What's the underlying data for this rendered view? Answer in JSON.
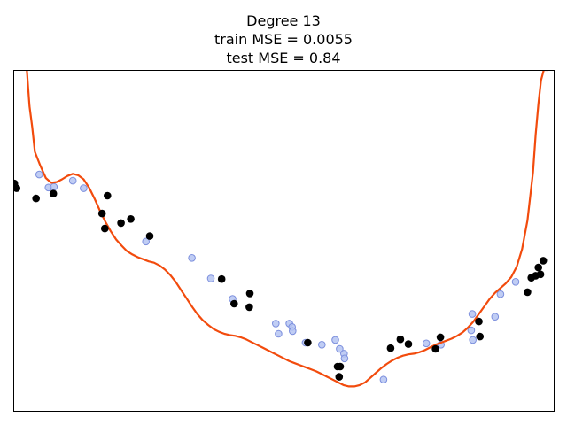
{
  "chart_data": {
    "type": "scatter",
    "title_lines": [
      "Degree 13",
      "train MSE = 0.0055",
      "test MSE = 0.84"
    ],
    "xlabel": "",
    "ylabel": "",
    "xlim": [
      0,
      1
    ],
    "ylim": [
      -2.5,
      2.5
    ],
    "grid": false,
    "axis_ticks": false,
    "colors": {
      "fit_line": "#f24b0d",
      "train_fill": "#b5c4f2",
      "train_edge": "#7c8fdd",
      "test_points": "#000000",
      "axes": "#000000"
    },
    "series": [
      {
        "kind": "line",
        "x": [
          0.025,
          0.03,
          0.035,
          0.04,
          0.05,
          0.06,
          0.07,
          0.08,
          0.09,
          0.1,
          0.11,
          0.12,
          0.13,
          0.14,
          0.15,
          0.16,
          0.17,
          0.18,
          0.19,
          0.2,
          0.21,
          0.22,
          0.23,
          0.24,
          0.25,
          0.26,
          0.27,
          0.28,
          0.29,
          0.3,
          0.31,
          0.32,
          0.33,
          0.34,
          0.35,
          0.36,
          0.37,
          0.38,
          0.39,
          0.4,
          0.41,
          0.42,
          0.43,
          0.44,
          0.45,
          0.46,
          0.47,
          0.48,
          0.49,
          0.5,
          0.51,
          0.52,
          0.53,
          0.54,
          0.55,
          0.56,
          0.57,
          0.58,
          0.59,
          0.6,
          0.61,
          0.62,
          0.63,
          0.64,
          0.65,
          0.66,
          0.67,
          0.68,
          0.69,
          0.7,
          0.71,
          0.72,
          0.73,
          0.74,
          0.75,
          0.76,
          0.77,
          0.78,
          0.79,
          0.8,
          0.81,
          0.82,
          0.83,
          0.84,
          0.85,
          0.86,
          0.87,
          0.88,
          0.89,
          0.9,
          0.91,
          0.92,
          0.93,
          0.94,
          0.95,
          0.96,
          0.965,
          0.97,
          0.975,
          0.98,
          0.985,
          0.988
        ],
        "y": [
          2.5,
          1.97,
          1.66,
          1.3,
          1.1,
          0.92,
          0.85,
          0.86,
          0.9,
          0.95,
          0.98,
          0.96,
          0.9,
          0.78,
          0.62,
          0.44,
          0.28,
          0.14,
          0.02,
          -0.07,
          -0.15,
          -0.2,
          -0.24,
          -0.27,
          -0.3,
          -0.32,
          -0.36,
          -0.42,
          -0.5,
          -0.6,
          -0.72,
          -0.84,
          -0.96,
          -1.07,
          -1.16,
          -1.23,
          -1.29,
          -1.33,
          -1.36,
          -1.38,
          -1.39,
          -1.41,
          -1.44,
          -1.48,
          -1.52,
          -1.56,
          -1.6,
          -1.64,
          -1.68,
          -1.72,
          -1.76,
          -1.79,
          -1.82,
          -1.85,
          -1.88,
          -1.91,
          -1.95,
          -1.99,
          -2.03,
          -2.07,
          -2.11,
          -2.13,
          -2.13,
          -2.11,
          -2.07,
          -2.0,
          -1.93,
          -1.86,
          -1.8,
          -1.75,
          -1.71,
          -1.68,
          -1.66,
          -1.65,
          -1.63,
          -1.6,
          -1.56,
          -1.52,
          -1.49,
          -1.46,
          -1.43,
          -1.39,
          -1.34,
          -1.27,
          -1.18,
          -1.07,
          -0.96,
          -0.85,
          -0.76,
          -0.69,
          -0.62,
          -0.53,
          -0.38,
          -0.12,
          0.3,
          1.0,
          1.55,
          2.0,
          2.35,
          2.5,
          2.5,
          2.5
        ]
      },
      {
        "kind": "scatter",
        "role": "train",
        "x": [
          0.048,
          0.065,
          0.075,
          0.11,
          0.13,
          0.245,
          0.33,
          0.365,
          0.405,
          0.485,
          0.49,
          0.51,
          0.515,
          0.516,
          0.54,
          0.57,
          0.595,
          0.603,
          0.611,
          0.612,
          0.684,
          0.763,
          0.79,
          0.848,
          0.846,
          0.849,
          0.89,
          0.9,
          0.928
        ],
        "y": [
          0.97,
          0.78,
          0.79,
          0.88,
          0.77,
          -0.01,
          -0.25,
          -0.55,
          -0.85,
          -1.21,
          -1.36,
          -1.21,
          -1.26,
          -1.32,
          -1.49,
          -1.52,
          -1.45,
          -1.58,
          -1.65,
          -1.72,
          -2.03,
          -1.5,
          -1.52,
          -1.07,
          -1.31,
          -1.45,
          -1.11,
          -0.78,
          -0.6
        ]
      },
      {
        "kind": "scatter",
        "role": "test",
        "x": [
          0.002,
          0.006,
          0.042,
          0.074,
          0.164,
          0.169,
          0.174,
          0.199,
          0.217,
          0.252,
          0.385,
          0.408,
          0.437,
          0.436,
          0.544,
          0.599,
          0.602,
          0.604,
          0.697,
          0.715,
          0.73,
          0.78,
          0.789,
          0.86,
          0.862,
          0.95,
          0.957,
          0.965,
          0.97,
          0.974,
          0.979
        ],
        "y": [
          0.84,
          0.77,
          0.62,
          0.69,
          0.4,
          0.18,
          0.66,
          0.26,
          0.32,
          0.07,
          -0.56,
          -0.92,
          -0.77,
          -0.97,
          -1.49,
          -1.84,
          -1.99,
          -1.84,
          -1.57,
          -1.44,
          -1.51,
          -1.58,
          -1.41,
          -1.18,
          -1.4,
          -0.75,
          -0.54,
          -0.51,
          -0.39,
          -0.49,
          -0.29
        ]
      }
    ]
  }
}
